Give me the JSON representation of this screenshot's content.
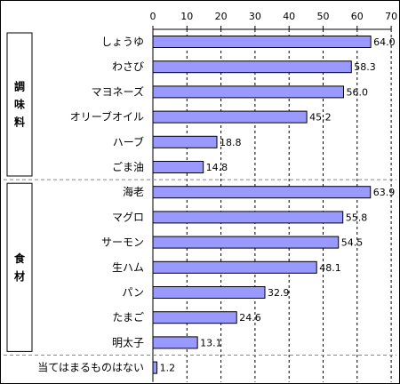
{
  "chart_data": {
    "type": "bar",
    "orientation": "horizontal",
    "xlim": [
      0,
      70
    ],
    "xticks": [
      0,
      10,
      20,
      30,
      40,
      50,
      60,
      70
    ],
    "grid": true,
    "bar_color": "#9999ff",
    "groups": [
      {
        "label": "調味料",
        "start": 0,
        "end": 5
      },
      {
        "label": "食材",
        "start": 6,
        "end": 12
      }
    ],
    "categories": [
      "しょうゆ",
      "わさび",
      "マヨネーズ",
      "オリーブオイル",
      "ハーブ",
      "ごま油",
      "海老",
      "マグロ",
      "サーモン",
      "生ハム",
      "パン",
      "たまご",
      "明太子",
      "当てはまるものはない"
    ],
    "values": [
      64.0,
      58.3,
      56.0,
      45.2,
      18.8,
      14.8,
      63.9,
      55.8,
      54.5,
      48.1,
      32.9,
      24.6,
      13.1,
      1.2
    ],
    "value_labels": [
      "64.0",
      "58.3",
      "56.0",
      "45.2",
      "18.8",
      "14.8",
      "63.9",
      "55.8",
      "54.5",
      "48.1",
      "32.9",
      "24.6",
      "13.1",
      "1.2"
    ]
  }
}
